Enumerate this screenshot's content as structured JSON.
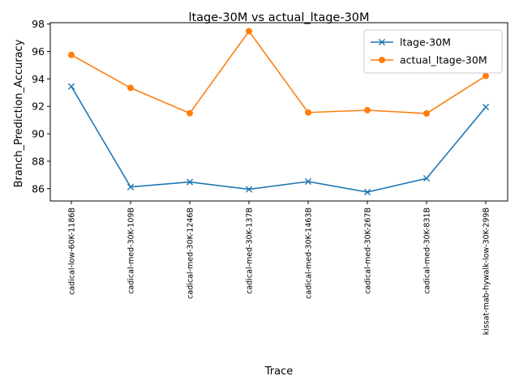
{
  "chart_data": {
    "type": "line",
    "title": "ltage-30M vs actual_ltage-30M",
    "xlabel": "Trace",
    "ylabel": "Branch_Prediction_Accuracy",
    "categories": [
      "cadical-low-60K-1186B",
      "cadical-med-30K-109B",
      "cadical-med-30K-1246B",
      "cadical-med-30K-137B",
      "cadical-med-30K-1463B",
      "cadical-med-30K-267B",
      "cadical-med-30K-831B",
      "kissat-mab-hywalk-low-30K-299B"
    ],
    "ylim": [
      85.1,
      98.1
    ],
    "yticks": [
      86,
      88,
      90,
      92,
      94,
      96,
      98
    ],
    "series": [
      {
        "name": "ltage-30M",
        "color": "#1f77b4",
        "marker": "x",
        "values": [
          93.45,
          86.12,
          86.48,
          85.95,
          86.52,
          85.75,
          86.75,
          91.95
        ]
      },
      {
        "name": "actual_ltage-30M",
        "color": "#ff7f0e",
        "marker": "o",
        "values": [
          95.75,
          93.35,
          91.5,
          97.48,
          91.55,
          91.72,
          91.48,
          94.22
        ]
      }
    ],
    "legend_position": "top-right",
    "grid": false
  }
}
